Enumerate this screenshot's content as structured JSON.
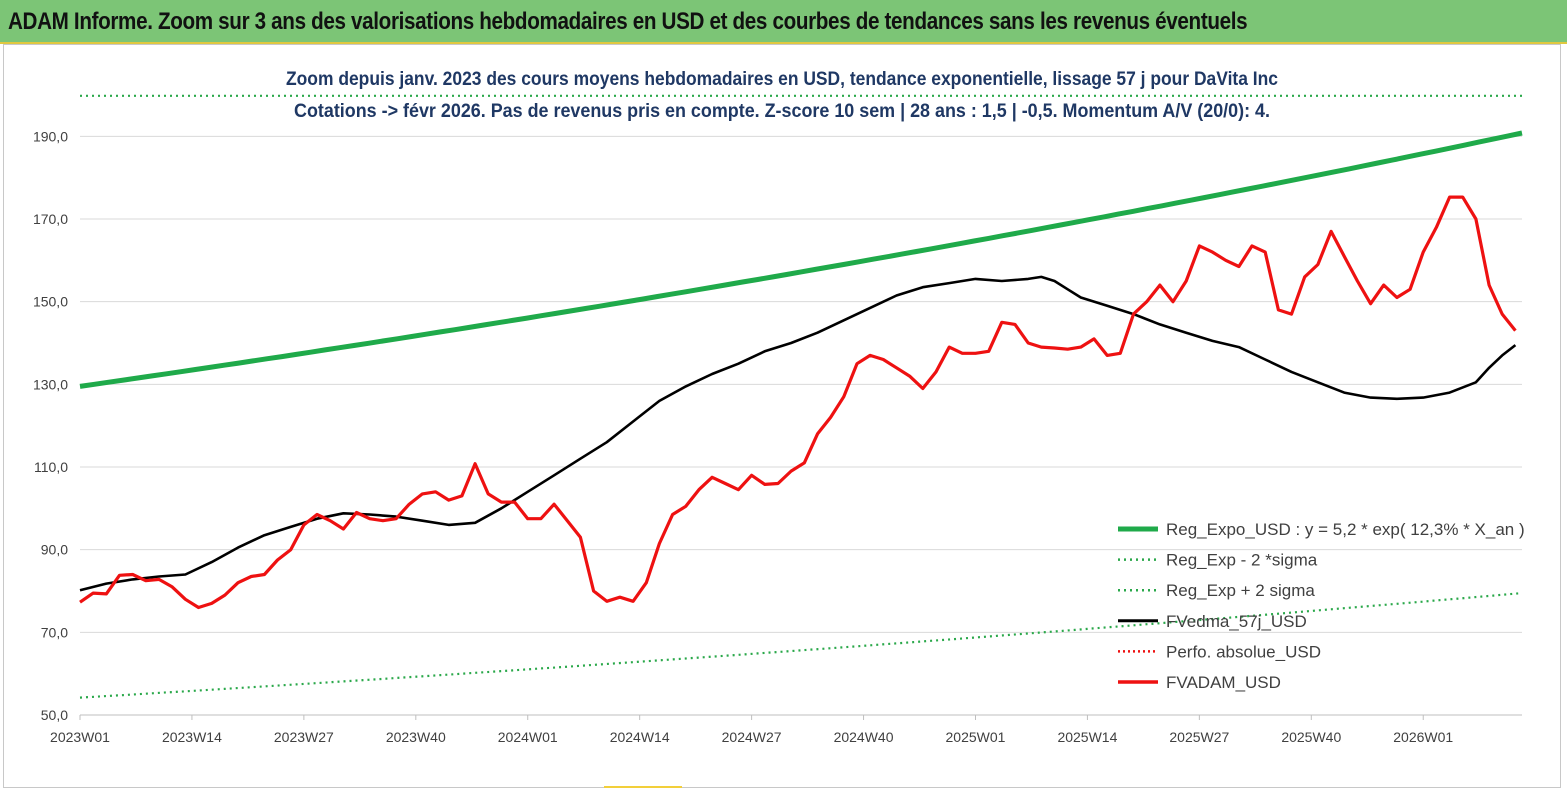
{
  "header": {
    "title": "ADAM Informe. Zoom sur 3 ans des valorisations hebdomadaires en USD et des courbes de tendances sans les revenus éventuels"
  },
  "colors": {
    "header_bg": "#7cc576",
    "reg_expo": "#1faa4a",
    "sigma_lines": "#2aa84a",
    "fvedma": "#000000",
    "fvadam": "#ee1111",
    "perfo": "#ee1111"
  },
  "chart_data": {
    "type": "line",
    "subtitle_line1": "Zoom depuis janv. 2023  des cours moyens hebdomadaires en USD, tendance exponentielle, lissage 57 j pour DaVita Inc",
    "subtitle_line2": "Cotations -> févr 2026.  Pas de revenus pris en compte. Z-score 10 sem  | 28 ans : 1,5 | -0,5. Momentum A/V (20/0): 4.",
    "x_tick_labels": [
      "2023W01",
      "2023W14",
      "2023W27",
      "2023W40",
      "2024W01",
      "2024W14",
      "2024W27",
      "2024W40",
      "2025W01",
      "2025W14",
      "2025W27",
      "2025W40",
      "2026W01"
    ],
    "x_count": 167,
    "y_tick_labels": [
      "50,0",
      "70,0",
      "90,0",
      "110,0",
      "130,0",
      "150,0",
      "170,0",
      "190,0"
    ],
    "ylim": [
      50,
      200
    ],
    "grid": "horizontal",
    "legend_position": "bottom-right",
    "legend": [
      {
        "label": "Reg_Expo_USD : y = 5,2  * exp( 12,3% *  X_an )",
        "style": "solid-thick-green"
      },
      {
        "label": "Reg_Exp - 2 *sigma",
        "style": "dotted-green"
      },
      {
        "label": "Reg_Exp + 2 sigma",
        "style": "dotted-green"
      },
      {
        "label": "FVedma_57j_USD",
        "style": "solid-black"
      },
      {
        "label": "Perfo. absolue_USD",
        "style": "dotted-red"
      },
      {
        "label": "FVADAM_USD",
        "style": "solid-red"
      }
    ],
    "series": [
      {
        "name": "Reg_Expo_USD : y = 5,2  * exp( 12,3% *  X_an )",
        "type": "exponential",
        "x_start": 0,
        "x_end": 166,
        "y_start": 129.5,
        "y_end": 190.8
      },
      {
        "name": "Reg_Exp - 2 *sigma",
        "type": "exponential",
        "x_start": 0,
        "x_end": 166,
        "y_start": 54.2,
        "y_end": 79.5
      },
      {
        "name": "Reg_Exp + 2 sigma",
        "type": "exponential",
        "x_start": 0,
        "x_end": 166,
        "y_start": 199.8,
        "y_end": 199.8
      },
      {
        "name": "FVedma_57j_USD",
        "points": [
          [
            0,
            80.2
          ],
          [
            4,
            81.8
          ],
          [
            8,
            82.8
          ],
          [
            12,
            83.5
          ],
          [
            16,
            84
          ],
          [
            20,
            87
          ],
          [
            24,
            90.5
          ],
          [
            28,
            93.5
          ],
          [
            32,
            95.5
          ],
          [
            36,
            97.5
          ],
          [
            40,
            98.8
          ],
          [
            44,
            98.5
          ],
          [
            48,
            98
          ],
          [
            52,
            97
          ],
          [
            56,
            96
          ],
          [
            60,
            96.5
          ],
          [
            64,
            100
          ],
          [
            68,
            104
          ],
          [
            72,
            108
          ],
          [
            76,
            112
          ],
          [
            80,
            116
          ],
          [
            84,
            121
          ],
          [
            88,
            126
          ],
          [
            92,
            129.5
          ],
          [
            96,
            132.5
          ],
          [
            100,
            135
          ],
          [
            104,
            138
          ],
          [
            108,
            140
          ],
          [
            112,
            142.5
          ],
          [
            116,
            145.5
          ],
          [
            120,
            148.5
          ],
          [
            124,
            151.5
          ],
          [
            128,
            153.5
          ],
          [
            132,
            154.5
          ],
          [
            136,
            155.5
          ],
          [
            140,
            155
          ],
          [
            144,
            155.5
          ],
          [
            146,
            156
          ],
          [
            148,
            155
          ],
          [
            150,
            153
          ],
          [
            152,
            151
          ],
          [
            156,
            149
          ],
          [
            160,
            147
          ],
          [
            164,
            144.5
          ],
          [
            168,
            142.5
          ],
          [
            172,
            140.5
          ],
          [
            176,
            139
          ],
          [
            180,
            136
          ],
          [
            184,
            133
          ],
          [
            188,
            130.5
          ],
          [
            192,
            128
          ],
          [
            196,
            126.8
          ],
          [
            200,
            126.5
          ],
          [
            204,
            126.8
          ],
          [
            208,
            128
          ],
          [
            212,
            130.5
          ],
          [
            214,
            134
          ],
          [
            216,
            137
          ],
          [
            218,
            139.5
          ]
        ]
      },
      {
        "name": "FVADAM_USD",
        "points": [
          [
            0,
            77.3
          ],
          [
            2,
            79.5
          ],
          [
            4,
            79.3
          ],
          [
            6,
            83.8
          ],
          [
            8,
            84
          ],
          [
            10,
            82.5
          ],
          [
            12,
            82.8
          ],
          [
            14,
            81
          ],
          [
            16,
            78
          ],
          [
            18,
            76
          ],
          [
            20,
            77
          ],
          [
            22,
            79
          ],
          [
            24,
            82
          ],
          [
            26,
            83.5
          ],
          [
            28,
            84
          ],
          [
            30,
            87.5
          ],
          [
            32,
            90
          ],
          [
            34,
            96
          ],
          [
            36,
            98.5
          ],
          [
            38,
            97
          ],
          [
            40,
            95
          ],
          [
            42,
            99
          ],
          [
            44,
            97.5
          ],
          [
            46,
            97
          ],
          [
            48,
            97.5
          ],
          [
            50,
            101
          ],
          [
            52,
            103.5
          ],
          [
            54,
            104
          ],
          [
            56,
            102
          ],
          [
            58,
            103
          ],
          [
            60,
            110.8
          ],
          [
            62,
            103.5
          ],
          [
            64,
            101.5
          ],
          [
            66,
            101.5
          ],
          [
            68,
            97.5
          ],
          [
            70,
            97.5
          ],
          [
            72,
            101
          ],
          [
            74,
            97
          ],
          [
            76,
            93
          ],
          [
            78,
            80
          ],
          [
            80,
            77.5
          ],
          [
            82,
            78.5
          ],
          [
            84,
            77.5
          ],
          [
            86,
            82
          ],
          [
            88,
            91.5
          ],
          [
            90,
            98.5
          ],
          [
            92,
            100.5
          ],
          [
            94,
            104.5
          ],
          [
            96,
            107.5
          ],
          [
            98,
            106
          ],
          [
            100,
            104.5
          ],
          [
            102,
            108
          ],
          [
            104,
            105.8
          ],
          [
            106,
            106
          ],
          [
            108,
            109
          ],
          [
            110,
            111
          ],
          [
            112,
            118
          ],
          [
            114,
            122
          ],
          [
            116,
            127
          ],
          [
            118,
            135
          ],
          [
            120,
            137
          ],
          [
            122,
            136
          ],
          [
            124,
            134
          ],
          [
            126,
            132
          ],
          [
            128,
            129
          ],
          [
            130,
            133
          ],
          [
            132,
            139
          ],
          [
            134,
            137.5
          ],
          [
            136,
            137.5
          ],
          [
            138,
            138
          ],
          [
            140,
            145
          ],
          [
            142,
            144.5
          ],
          [
            144,
            140
          ],
          [
            146,
            139
          ],
          [
            148,
            138.8
          ],
          [
            150,
            138.5
          ],
          [
            152,
            139
          ],
          [
            154,
            141
          ],
          [
            156,
            137
          ],
          [
            158,
            137.5
          ],
          [
            160,
            147
          ],
          [
            162,
            150
          ],
          [
            164,
            154
          ],
          [
            166,
            150
          ],
          [
            168,
            155
          ],
          [
            170,
            163.5
          ],
          [
            172,
            162
          ],
          [
            174,
            160
          ],
          [
            176,
            158.5
          ],
          [
            178,
            163.5
          ],
          [
            180,
            162
          ],
          [
            182,
            148
          ],
          [
            184,
            147
          ],
          [
            186,
            156
          ],
          [
            188,
            159
          ],
          [
            190,
            167
          ],
          [
            192,
            161
          ],
          [
            194,
            155
          ],
          [
            196,
            149.5
          ],
          [
            198,
            154
          ],
          [
            200,
            151
          ],
          [
            202,
            153
          ],
          [
            204,
            162
          ],
          [
            206,
            168
          ],
          [
            208,
            175.3
          ],
          [
            210,
            175.3
          ],
          [
            212,
            170
          ],
          [
            214,
            154
          ],
          [
            216,
            147
          ],
          [
            218,
            143
          ]
        ]
      }
    ]
  }
}
